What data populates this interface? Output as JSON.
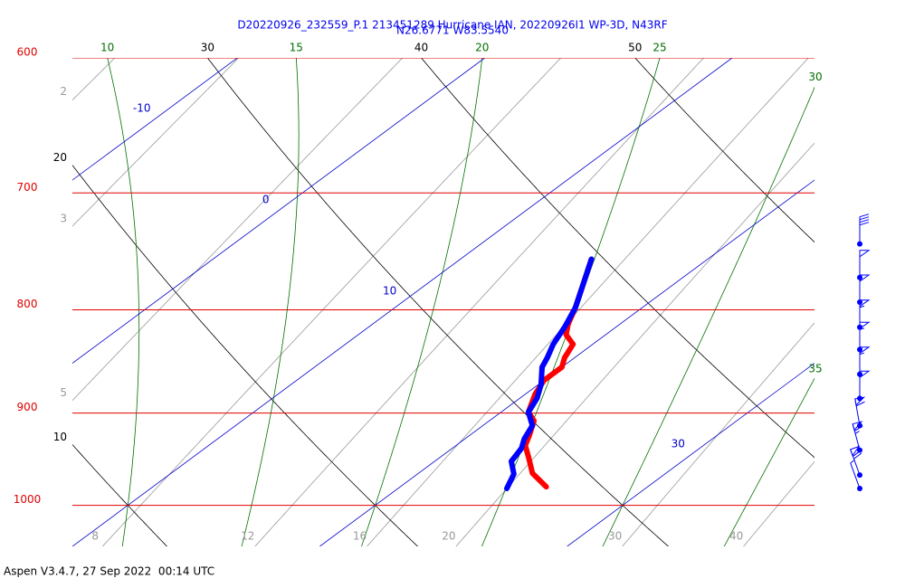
{
  "chart_data": {
    "type": "skewt",
    "title": "D20220926_232559_P.1 213451289 Hurricane IAN, 20220926I1 WP-3D, N43RF",
    "subtitle": "N26.6771 W83.5540",
    "ylim": [
      1048,
      600
    ],
    "log_y": true,
    "xlim": [
      10,
      40
    ],
    "isobars": [
      600,
      700,
      800,
      900,
      1000
    ],
    "isobar_color": "#e00000",
    "isotherms": [
      -10,
      0,
      10,
      20,
      30
    ],
    "isotherm_labels": [
      -10,
      0,
      10,
      30
    ],
    "isotherm_color": "#0000cc",
    "dry_adiabats": [
      10,
      20,
      30,
      40,
      50
    ],
    "dry_adiabat_color": "#000000",
    "moist_adiabats": [
      10,
      15,
      20,
      25,
      30,
      35
    ],
    "moist_adiabat_color": "#007000",
    "mixing_ratios": [
      2,
      3,
      5,
      8,
      12,
      16,
      20,
      30,
      40
    ],
    "mixing_ratio_color": "#999999",
    "series": [
      {
        "color": "#ff0000",
        "pressure": [
          979,
          964,
          947,
          934,
          923,
          908,
          899,
          881,
          867,
          854,
          845,
          832,
          823,
          813,
          798,
          774,
          755
        ],
        "values": [
          25.9,
          24.6,
          23.6,
          22.8,
          22.4,
          21.8,
          21.1,
          20.4,
          20.0,
          20.0,
          19.6,
          19.2,
          18.4,
          17.9,
          17.3,
          16.2,
          15.3
        ]
      },
      {
        "color": "#0000ff",
        "pressure": [
          981,
          965,
          951,
          937,
          927,
          913,
          899,
          885,
          871,
          854,
          845,
          832,
          815,
          798,
          774,
          755
        ],
        "values": [
          24.4,
          23.9,
          23.1,
          22.8,
          22.4,
          22.0,
          21.1,
          20.7,
          20.1,
          19.2,
          18.9,
          18.4,
          17.9,
          17.3,
          16.2,
          15.3
        ]
      }
    ],
    "winds": {
      "color": "#0000ff",
      "pressure": [
        742,
        771,
        793,
        816,
        837,
        861,
        885,
        913,
        939,
        966,
        981
      ],
      "speed": [
        40,
        50,
        50,
        55,
        55,
        55,
        50,
        60,
        65,
        70,
        5
      ],
      "direction": [
        360,
        360,
        360,
        360,
        360,
        360,
        360,
        350,
        345,
        340,
        340
      ]
    }
  },
  "footer": "Aspen V3.4.7, 27 Sep 2022  00:14 UTC"
}
